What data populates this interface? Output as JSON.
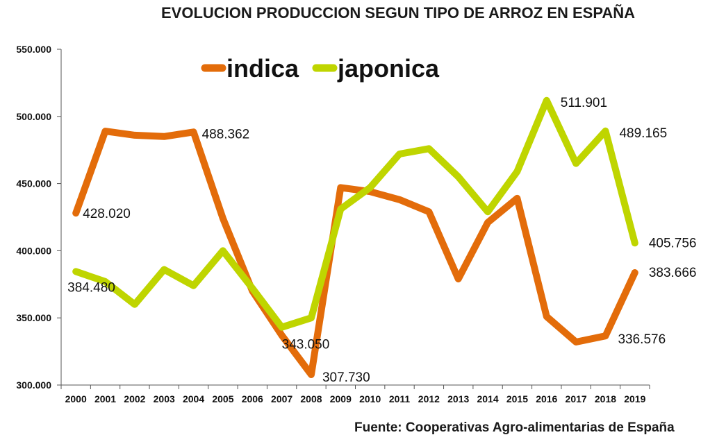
{
  "title": "EVOLUCION PRODUCCION SEGUN TIPO DE ARROZ EN ESPAÑA",
  "source": "Fuente: Cooperativas Agro-alimentarias de España",
  "chart_data": {
    "type": "line",
    "title": "EVOLUCION PRODUCCION SEGUN TIPO DE ARROZ EN ESPAÑA",
    "xlabel": "",
    "ylabel": "",
    "categories": [
      "2000",
      "2001",
      "2002",
      "2003",
      "2004",
      "2005",
      "2006",
      "2007",
      "2008",
      "2009",
      "2010",
      "2011",
      "2012",
      "2013",
      "2014",
      "2015",
      "2016",
      "2017",
      "2018",
      "2019"
    ],
    "ylim": [
      300000,
      550000
    ],
    "yticks": [
      300000,
      350000,
      400000,
      450000,
      500000,
      550000
    ],
    "ytick_labels": [
      "300.000",
      "350.000",
      "400.000",
      "450.000",
      "500.000",
      "550.000"
    ],
    "grid": false,
    "legend_position": "top-left",
    "series": [
      {
        "name": "indica",
        "color": "#e36c0a",
        "values": [
          428020,
          489000,
          486000,
          485000,
          488362,
          424000,
          370000,
          337000,
          307730,
          447000,
          444000,
          438000,
          429000,
          379000,
          421000,
          439000,
          351000,
          332000,
          336576,
          383666
        ],
        "labels": [
          {
            "index": 0,
            "text": "428.020"
          },
          {
            "index": 4,
            "text": "488.362"
          },
          {
            "index": 8,
            "text": "307.730"
          },
          {
            "index": 18,
            "text": "336.576"
          },
          {
            "index": 19,
            "text": "383.666"
          }
        ]
      },
      {
        "name": "japonica",
        "color": "#bfd500",
        "values": [
          384480,
          377000,
          360000,
          386000,
          374000,
          400000,
          372000,
          343050,
          350000,
          431000,
          447000,
          472000,
          476000,
          455000,
          429000,
          459000,
          511901,
          465000,
          489165,
          405756
        ],
        "labels": [
          {
            "index": 0,
            "text": "384.480"
          },
          {
            "index": 7,
            "text": "343.050"
          },
          {
            "index": 16,
            "text": "511.901"
          },
          {
            "index": 18,
            "text": "489.165"
          },
          {
            "index": 19,
            "text": "405.756"
          }
        ]
      }
    ]
  }
}
